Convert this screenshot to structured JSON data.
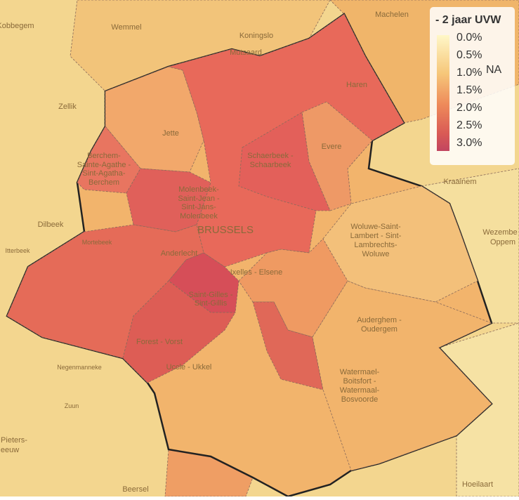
{
  "legend": {
    "title": "- 2 jaar UVW",
    "ticks": [
      "0.0%",
      "0.5%",
      "1.0%",
      "1.5%",
      "2.0%",
      "2.5%",
      "3.0%"
    ],
    "na": "NA"
  },
  "places": [
    [
      "Kobbegem"
    ],
    [
      "Wemmel"
    ],
    [
      "Koningslo"
    ],
    [
      "Mutsaard"
    ],
    [
      "Machelen"
    ],
    [
      "Haren"
    ],
    [
      "Zellik"
    ],
    [
      "Jette"
    ],
    [
      "Evere"
    ],
    [
      "Berchem-",
      "Sainte-Agathe -",
      "Sint-Agatha-",
      "Berchem"
    ],
    [
      "Schaerbeek -",
      "Schaarbeek"
    ],
    [
      "Kraainem"
    ],
    [
      "Molenbeek-",
      "Saint-Jean -",
      "Sint-Jans-",
      "Molenbeek"
    ],
    [
      "BRUSSELS"
    ],
    [
      "Dilbeek"
    ],
    [
      "Woluwe-Saint-",
      "Lambert - Sint-",
      "Lambrechts-",
      "Woluwe"
    ],
    [
      "Wezembe"
    ],
    [
      "Oppem"
    ],
    [
      "Mortebeek"
    ],
    [
      "Itterbeek"
    ],
    [
      "Anderlecht"
    ],
    [
      "Ixelles - Elsene"
    ],
    [
      "Saint-Gilles -",
      "Sint-Gillis"
    ],
    [
      "Auderghem -",
      "Oudergem"
    ],
    [
      "Forest - Vorst"
    ],
    [
      "Negenmanneke"
    ],
    [
      "Uccle - Ukkel"
    ],
    [
      "Watermael-",
      "Boitsfort -",
      "Watermaal-",
      "Bosvoorde"
    ],
    [
      "Zuun"
    ],
    [
      "Pieters-",
      "eeuw"
    ],
    [
      "Beersel"
    ],
    [
      "Hoeilaart"
    ]
  ]
}
